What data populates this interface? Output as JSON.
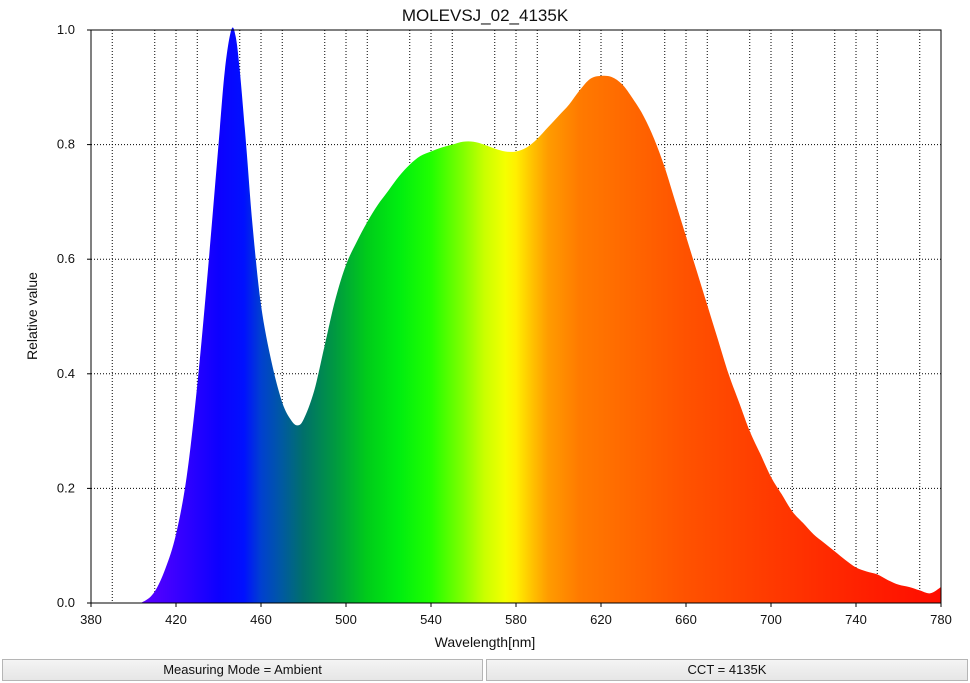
{
  "chart_data": {
    "type": "area",
    "title": "MOLEVSJ_02_4135K",
    "xlabel": "Wavelength[nm]",
    "ylabel": "Relative value",
    "xlim": [
      380,
      780
    ],
    "ylim": [
      0,
      1.0
    ],
    "x_ticks": [
      "380",
      "420",
      "460",
      "500",
      "540",
      "580",
      "620",
      "660",
      "700",
      "740",
      "780"
    ],
    "y_ticks": [
      "0.0",
      "0.2",
      "0.4",
      "0.6",
      "0.8",
      "1.0"
    ],
    "grid": true,
    "fill": "visible-spectrum color gradient",
    "series": [
      {
        "x": [
          380,
          400,
          405,
          410,
          415,
          420,
          425,
          430,
          435,
          440,
          443,
          446,
          448,
          450,
          453,
          456,
          460,
          465,
          470,
          474,
          477,
          480,
          485,
          490,
          495,
          500,
          505,
          510,
          515,
          520,
          525,
          530,
          535,
          540,
          545,
          550,
          555,
          560,
          565,
          570,
          575,
          580,
          585,
          590,
          595,
          600,
          605,
          610,
          615,
          620,
          625,
          630,
          635,
          640,
          645,
          650,
          655,
          660,
          665,
          670,
          675,
          680,
          685,
          690,
          695,
          700,
          705,
          710,
          715,
          720,
          725,
          730,
          735,
          740,
          745,
          750,
          755,
          760,
          765,
          770,
          775,
          780
        ],
        "y": [
          0.0,
          0.0,
          0.003,
          0.02,
          0.06,
          0.12,
          0.22,
          0.38,
          0.58,
          0.8,
          0.93,
          1.0,
          0.99,
          0.93,
          0.8,
          0.66,
          0.52,
          0.42,
          0.35,
          0.32,
          0.31,
          0.32,
          0.37,
          0.45,
          0.53,
          0.59,
          0.63,
          0.665,
          0.695,
          0.72,
          0.745,
          0.765,
          0.78,
          0.788,
          0.795,
          0.8,
          0.805,
          0.805,
          0.8,
          0.793,
          0.788,
          0.788,
          0.795,
          0.81,
          0.83,
          0.85,
          0.87,
          0.895,
          0.915,
          0.92,
          0.918,
          0.905,
          0.88,
          0.85,
          0.81,
          0.76,
          0.7,
          0.64,
          0.58,
          0.52,
          0.46,
          0.4,
          0.35,
          0.3,
          0.26,
          0.22,
          0.19,
          0.16,
          0.14,
          0.12,
          0.105,
          0.09,
          0.075,
          0.062,
          0.055,
          0.05,
          0.04,
          0.032,
          0.028,
          0.022,
          0.017,
          0.028
        ]
      }
    ]
  },
  "status": {
    "measuring_mode": "Measuring Mode = Ambient",
    "cct": "CCT = 4135K"
  }
}
